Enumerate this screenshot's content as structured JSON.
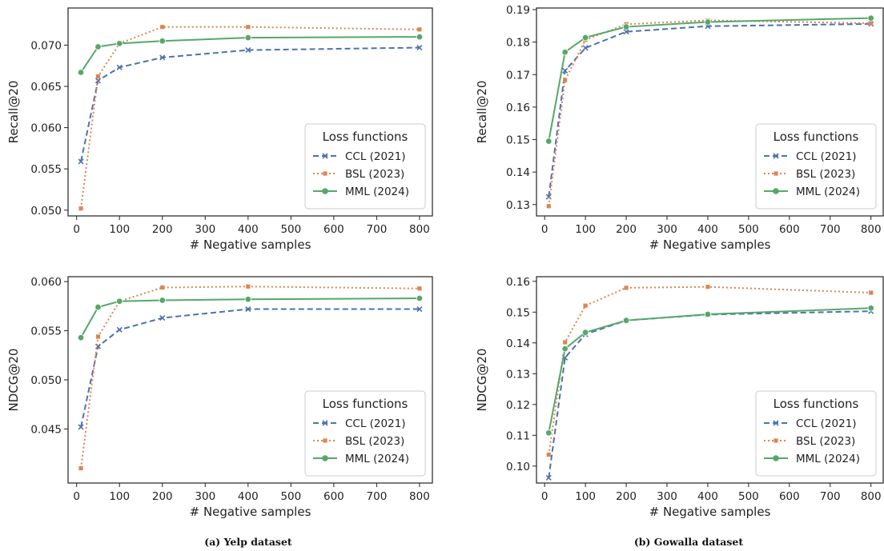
{
  "captions": [
    "(a) Yelp dataset",
    "(b) Gowalla dataset"
  ],
  "chart_data": [
    {
      "type": "line",
      "xlabel": "# Negative samples",
      "ylabel": "Recall@20",
      "xlim": [
        -20,
        830
      ],
      "ylim": [
        0.0493,
        0.0745
      ],
      "xticks": [
        0,
        100,
        200,
        300,
        400,
        500,
        600,
        700,
        800
      ],
      "yticks": [
        "0.050",
        "0.055",
        "0.060",
        "0.065",
        "0.070"
      ],
      "legend": {
        "title": "Loss functions",
        "position": "lower-right"
      },
      "x": [
        10,
        50,
        100,
        200,
        400,
        800
      ],
      "series": [
        {
          "name": "CCL (2021)",
          "color": "#4c72b0",
          "style": "dashed",
          "marker": "x",
          "values": [
            0.0559,
            0.0657,
            0.0673,
            0.0685,
            0.0694,
            0.0697
          ]
        },
        {
          "name": "BSL (2023)",
          "color": "#dd8452",
          "style": "dotted",
          "marker": "square",
          "values": [
            0.0502,
            0.0662,
            0.0702,
            0.0722,
            0.0722,
            0.0719
          ]
        },
        {
          "name": "MML (2024)",
          "color": "#55a868",
          "style": "solid",
          "marker": "circle",
          "values": [
            0.0667,
            0.0698,
            0.0702,
            0.0705,
            0.0709,
            0.071
          ]
        }
      ]
    },
    {
      "type": "line",
      "xlabel": "# Negative samples",
      "ylabel": "Recall@20",
      "xlim": [
        -20,
        830
      ],
      "ylim": [
        0.1265,
        0.1905
      ],
      "xticks": [
        0,
        100,
        200,
        300,
        400,
        500,
        600,
        700,
        800
      ],
      "yticks": [
        "0.13",
        "0.14",
        "0.15",
        "0.16",
        "0.17",
        "0.18",
        "0.19"
      ],
      "legend": {
        "title": "Loss functions",
        "position": "lower-right"
      },
      "x": [
        10,
        50,
        100,
        200,
        400,
        800
      ],
      "series": [
        {
          "name": "CCL (2021)",
          "color": "#4c72b0",
          "style": "dashed",
          "marker": "x",
          "values": [
            0.1324,
            0.1712,
            0.1782,
            0.1832,
            0.1849,
            0.1856
          ]
        },
        {
          "name": "BSL (2023)",
          "color": "#dd8452",
          "style": "dotted",
          "marker": "square",
          "values": [
            0.1295,
            0.1683,
            0.1807,
            0.1855,
            0.1867,
            0.1858
          ]
        },
        {
          "name": "MML (2024)",
          "color": "#55a868",
          "style": "solid",
          "marker": "circle",
          "values": [
            0.1495,
            0.1769,
            0.1814,
            0.1847,
            0.1862,
            0.1874
          ]
        }
      ]
    },
    {
      "type": "line",
      "xlabel": "# Negative samples",
      "ylabel": "NDCG@20",
      "xlim": [
        -20,
        830
      ],
      "ylim": [
        0.0395,
        0.0605
      ],
      "xticks": [
        0,
        100,
        200,
        300,
        400,
        500,
        600,
        700,
        800
      ],
      "yticks": [
        "0.045",
        "0.050",
        "0.055",
        "0.060"
      ],
      "legend": {
        "title": "Loss functions",
        "position": "lower-right"
      },
      "x": [
        10,
        50,
        100,
        200,
        400,
        800
      ],
      "series": [
        {
          "name": "CCL (2021)",
          "color": "#4c72b0",
          "style": "dashed",
          "marker": "x",
          "values": [
            0.0452,
            0.0534,
            0.0551,
            0.0563,
            0.0572,
            0.0572
          ]
        },
        {
          "name": "BSL (2023)",
          "color": "#dd8452",
          "style": "dotted",
          "marker": "square",
          "values": [
            0.041,
            0.0544,
            0.058,
            0.0594,
            0.0595,
            0.0593
          ]
        },
        {
          "name": "MML (2024)",
          "color": "#55a868",
          "style": "solid",
          "marker": "circle",
          "values": [
            0.0543,
            0.0574,
            0.058,
            0.0581,
            0.0582,
            0.0583
          ]
        }
      ]
    },
    {
      "type": "line",
      "xlabel": "# Negative samples",
      "ylabel": "NDCG@20",
      "xlim": [
        -20,
        830
      ],
      "ylim": [
        0.0945,
        0.1615
      ],
      "xticks": [
        0,
        100,
        200,
        300,
        400,
        500,
        600,
        700,
        800
      ],
      "yticks": [
        "0.10",
        "0.11",
        "0.12",
        "0.13",
        "0.14",
        "0.15",
        "0.16"
      ],
      "legend": {
        "title": "Loss functions",
        "position": "lower-right"
      },
      "x": [
        10,
        50,
        100,
        200,
        400,
        800
      ],
      "series": [
        {
          "name": "CCL (2021)",
          "color": "#4c72b0",
          "style": "dashed",
          "marker": "x",
          "values": [
            0.0962,
            0.1352,
            0.1428,
            0.1473,
            0.1492,
            0.1503
          ]
        },
        {
          "name": "BSL (2023)",
          "color": "#dd8452",
          "style": "dotted",
          "marker": "square",
          "values": [
            0.1037,
            0.1402,
            0.1521,
            0.1579,
            0.1582,
            0.1563
          ]
        },
        {
          "name": "MML (2024)",
          "color": "#55a868",
          "style": "solid",
          "marker": "circle",
          "values": [
            0.1108,
            0.1381,
            0.1434,
            0.1473,
            0.1493,
            0.1513
          ]
        }
      ]
    }
  ]
}
